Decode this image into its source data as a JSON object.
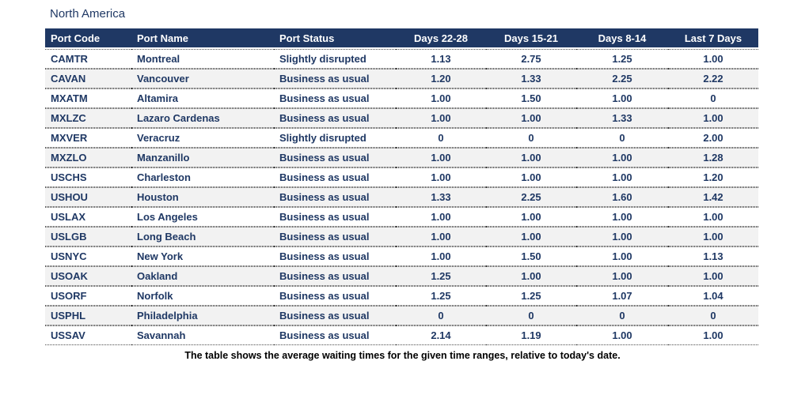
{
  "title": "North America",
  "table": {
    "columns": [
      "Port Code",
      "Port Name",
      "Port Status",
      "Days 22-28",
      "Days 15-21",
      "Days 8-14",
      "Last 7 Days"
    ],
    "rows": [
      {
        "code": "CAMTR",
        "name": "Montreal",
        "status": "Slightly disrupted",
        "d22_28": "1.13",
        "d15_21": "2.75",
        "d8_14": "1.25",
        "last7": "1.00"
      },
      {
        "code": "CAVAN",
        "name": "Vancouver",
        "status": "Business as usual",
        "d22_28": "1.20",
        "d15_21": "1.33",
        "d8_14": "2.25",
        "last7": "2.22"
      },
      {
        "code": "MXATM",
        "name": "Altamira",
        "status": "Business as usual",
        "d22_28": "1.00",
        "d15_21": "1.50",
        "d8_14": "1.00",
        "last7": "0"
      },
      {
        "code": "MXLZC",
        "name": "Lazaro Cardenas",
        "status": "Business as usual",
        "d22_28": "1.00",
        "d15_21": "1.00",
        "d8_14": "1.33",
        "last7": "1.00"
      },
      {
        "code": "MXVER",
        "name": "Veracruz",
        "status": "Slightly disrupted",
        "d22_28": "0",
        "d15_21": "0",
        "d8_14": "0",
        "last7": "2.00"
      },
      {
        "code": "MXZLO",
        "name": "Manzanillo",
        "status": "Business as usual",
        "d22_28": "1.00",
        "d15_21": "1.00",
        "d8_14": "1.00",
        "last7": "1.28"
      },
      {
        "code": "USCHS",
        "name": "Charleston",
        "status": "Business as usual",
        "d22_28": "1.00",
        "d15_21": "1.00",
        "d8_14": "1.00",
        "last7": "1.20"
      },
      {
        "code": "USHOU",
        "name": "Houston",
        "status": "Business as usual",
        "d22_28": "1.33",
        "d15_21": "2.25",
        "d8_14": "1.60",
        "last7": "1.42"
      },
      {
        "code": "USLAX",
        "name": "Los Angeles",
        "status": "Business as usual",
        "d22_28": "1.00",
        "d15_21": "1.00",
        "d8_14": "1.00",
        "last7": "1.00"
      },
      {
        "code": "USLGB",
        "name": "Long Beach",
        "status": "Business as usual",
        "d22_28": "1.00",
        "d15_21": "1.00",
        "d8_14": "1.00",
        "last7": "1.00"
      },
      {
        "code": "USNYC",
        "name": "New York",
        "status": "Business as usual",
        "d22_28": "1.00",
        "d15_21": "1.50",
        "d8_14": "1.00",
        "last7": "1.13"
      },
      {
        "code": "USOAK",
        "name": "Oakland",
        "status": "Business as usual",
        "d22_28": "1.25",
        "d15_21": "1.00",
        "d8_14": "1.00",
        "last7": "1.00"
      },
      {
        "code": "USORF",
        "name": "Norfolk",
        "status": "Business as usual",
        "d22_28": "1.25",
        "d15_21": "1.25",
        "d8_14": "1.07",
        "last7": "1.04"
      },
      {
        "code": "USPHL",
        "name": "Philadelphia",
        "status": "Business as usual",
        "d22_28": "0",
        "d15_21": "0",
        "d8_14": "0",
        "last7": "0"
      },
      {
        "code": "USSAV",
        "name": "Savannah",
        "status": "Business as usual",
        "d22_28": "2.14",
        "d15_21": "1.19",
        "d8_14": "1.00",
        "last7": "1.00"
      }
    ]
  },
  "caption": "The table shows the average waiting times for the given time ranges, relative to today's date.",
  "colors": {
    "header_bg": "#1F3864",
    "header_text": "#FFFFFF",
    "cell_text": "#1F3864",
    "stripe": "#F2F2F2",
    "separator_dots": "#4D4D4D",
    "caption_text": "#000000"
  }
}
